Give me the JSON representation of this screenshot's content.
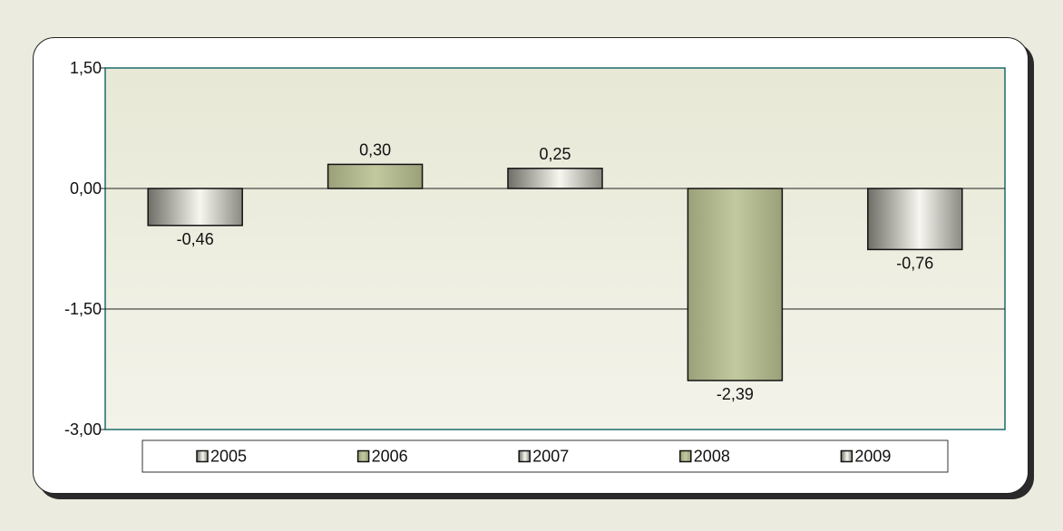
{
  "chart_data": {
    "type": "bar",
    "title": "",
    "xlabel": "",
    "ylabel": "",
    "categories": [
      "2005",
      "2006",
      "2007",
      "2008",
      "2009"
    ],
    "values": [
      -0.46,
      0.3,
      0.25,
      -2.39,
      -0.76
    ],
    "value_labels": [
      "-0,46",
      "0,30",
      "0,25",
      "-2,39",
      "-0,76"
    ],
    "ylim": [
      -3.0,
      1.5
    ],
    "yticks": [
      1.5,
      0.0,
      -1.5,
      -3.0
    ],
    "ytick_labels": [
      "1,50",
      "0,00",
      "-1,50",
      "-3,00"
    ],
    "grid": true,
    "legend_position": "bottom",
    "colors": [
      "#9a9a8a",
      "#b7bf95",
      "#c4c4b4",
      "#b8c197",
      "#a8a89a"
    ],
    "plot_background": "#eeeee2",
    "plot_border_color": "#1c6b6b"
  }
}
